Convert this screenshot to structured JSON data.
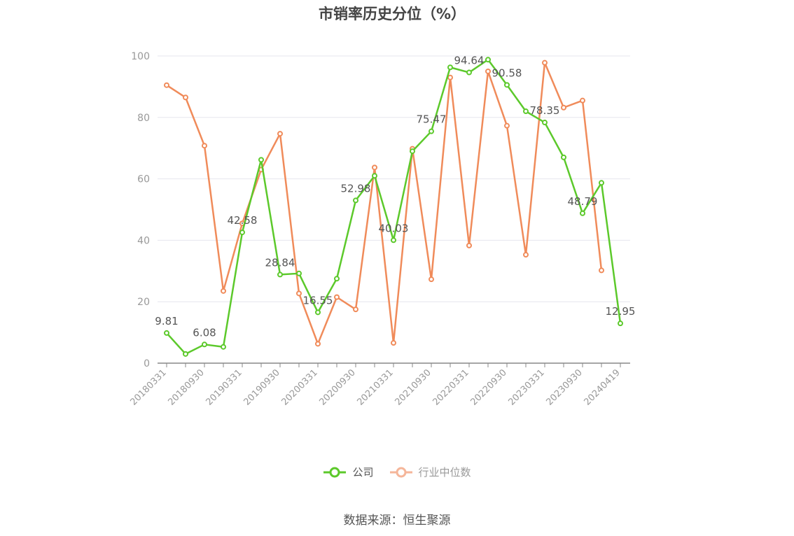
{
  "title": "市销率历史分位（%）",
  "source_text": "数据来源：恒生聚源",
  "colors": {
    "company": "#5cc92b",
    "industry": "#f08b5a",
    "industry_legend": "#f5b69a",
    "grid": "#e6e6ee",
    "axis": "#999999"
  },
  "chart_data": {
    "type": "line",
    "title": "市销率历史分位（%）",
    "ylim": [
      0,
      100
    ],
    "yticks": [
      0,
      20,
      40,
      60,
      80,
      100
    ],
    "grid": true,
    "legend_position": "bottom",
    "x": [
      "20180331",
      "20180630",
      "20180930",
      "20181231",
      "20190331",
      "20190630",
      "20190930",
      "20191231",
      "20200331",
      "20200630",
      "20200930",
      "20201231",
      "20210331",
      "20210630",
      "20210930",
      "20211231",
      "20220331",
      "20220630",
      "20220930",
      "20221231",
      "20230331",
      "20230630",
      "20230930",
      "20231231",
      "20240419"
    ],
    "x_tick_labels": [
      "20180331",
      "20180930",
      "20190331",
      "20190930",
      "20200331",
      "20200930",
      "20210331",
      "20210930",
      "20220331",
      "20220930",
      "20230331",
      "20230930",
      "20240419"
    ],
    "series": [
      {
        "name": "公司",
        "values": [
          9.81,
          3.0,
          6.08,
          5.3,
          42.58,
          66.2,
          28.84,
          29.2,
          16.55,
          27.5,
          52.98,
          61.0,
          40.03,
          69.0,
          75.47,
          96.3,
          94.64,
          98.8,
          90.58,
          82.0,
          78.35,
          67.0,
          48.79,
          58.7,
          12.95
        ],
        "labels": [
          "9.81",
          null,
          "6.08",
          null,
          "42.58",
          null,
          "28.84",
          null,
          "16.55",
          null,
          "52.98",
          null,
          "40.03",
          null,
          "75.47",
          null,
          "94.64",
          null,
          "90.58",
          null,
          "78.35",
          null,
          "48.79",
          null,
          "12.95"
        ]
      },
      {
        "name": "行业中位数",
        "values": [
          90.5,
          86.5,
          70.8,
          23.5,
          45.5,
          63.0,
          74.7,
          22.7,
          6.3,
          21.5,
          17.5,
          63.7,
          6.6,
          69.8,
          27.3,
          93.0,
          38.3,
          95.0,
          77.3,
          35.3,
          97.8,
          83.2,
          85.5,
          30.2,
          null
        ]
      }
    ]
  }
}
